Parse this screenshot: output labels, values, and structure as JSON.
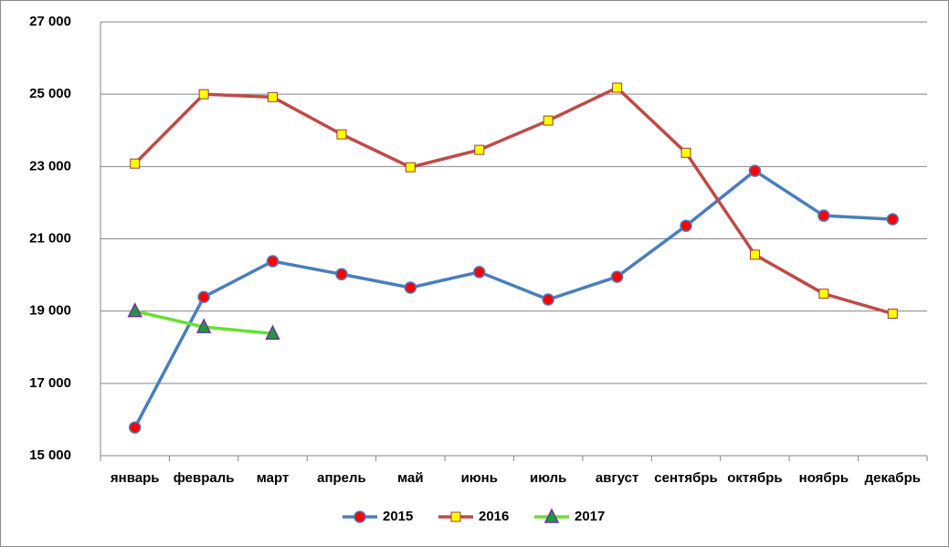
{
  "chart_data": {
    "type": "line",
    "categories": [
      "январь",
      "февраль",
      "март",
      "апрель",
      "май",
      "июнь",
      "июль",
      "август",
      "сентябрь",
      "октябрь",
      "ноябрь",
      "декабрь"
    ],
    "series": [
      {
        "name": "2015",
        "color": "#4a7ebb",
        "marker": "circle",
        "marker_color": "#ff0000",
        "values": [
          15780,
          19390,
          20380,
          20020,
          19650,
          20080,
          19320,
          19950,
          21360,
          22880,
          21640,
          21540
        ]
      },
      {
        "name": "2016",
        "color": "#be4b48",
        "marker": "square",
        "marker_color": "#ffff00",
        "values": [
          23080,
          25000,
          24920,
          23890,
          22980,
          23460,
          24270,
          25180,
          23380,
          20560,
          19480,
          18930
        ]
      },
      {
        "name": "2017",
        "color": "#66e033",
        "marker": "triangle",
        "marker_color": "#1f9a3a",
        "values": [
          19000,
          18560,
          18380,
          null,
          null,
          null,
          null,
          null,
          null,
          null,
          null,
          null
        ]
      }
    ],
    "ylim": [
      15000,
      27000
    ],
    "yticks": [
      {
        "value": 15000,
        "label": "15 000"
      },
      {
        "value": 17000,
        "label": "17 000"
      },
      {
        "value": 19000,
        "label": "19 000"
      },
      {
        "value": 21000,
        "label": "21 000"
      },
      {
        "value": 23000,
        "label": "23 000"
      },
      {
        "value": 25000,
        "label": "25 000"
      },
      {
        "value": 27000,
        "label": "27 000"
      }
    ],
    "grid": true,
    "legend": "bottom"
  }
}
